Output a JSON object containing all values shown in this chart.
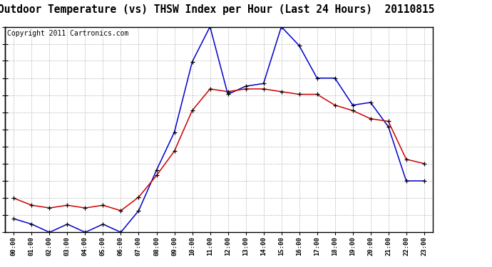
{
  "title": "Outdoor Temperature (vs) THSW Index per Hour (Last 24 Hours)  20110815",
  "copyright": "Copyright 2011 Cartronics.com",
  "hours": [
    "00:00",
    "01:00",
    "02:00",
    "03:00",
    "04:00",
    "05:00",
    "06:00",
    "07:00",
    "08:00",
    "09:00",
    "10:00",
    "11:00",
    "12:00",
    "13:00",
    "14:00",
    "15:00",
    "16:00",
    "17:00",
    "18:00",
    "19:00",
    "20:00",
    "21:00",
    "22:00",
    "23:00"
  ],
  "temp": [
    62.3,
    61.0,
    60.5,
    61.0,
    60.5,
    61.0,
    60.0,
    62.5,
    66.5,
    71.0,
    78.5,
    82.5,
    82.0,
    82.5,
    82.5,
    82.0,
    81.5,
    81.5,
    79.5,
    78.5,
    77.0,
    76.5,
    69.5,
    68.7
  ],
  "thsw": [
    58.5,
    57.5,
    56.0,
    57.5,
    56.0,
    57.5,
    56.0,
    60.0,
    67.5,
    74.5,
    87.5,
    94.0,
    81.5,
    83.0,
    83.5,
    94.0,
    90.5,
    84.5,
    84.5,
    79.5,
    80.0,
    75.5,
    65.5,
    65.5
  ],
  "ylim_min": 56.0,
  "ylim_max": 94.0,
  "yticks": [
    56.0,
    59.2,
    62.3,
    65.5,
    68.7,
    71.8,
    75.0,
    78.2,
    81.3,
    84.5,
    87.7,
    90.8,
    94.0
  ],
  "temp_color": "#cc0000",
  "thsw_color": "#0000cc",
  "bg_color": "#ffffff",
  "grid_color": "#aaaaaa",
  "title_fontsize": 10.5,
  "copyright_fontsize": 7
}
